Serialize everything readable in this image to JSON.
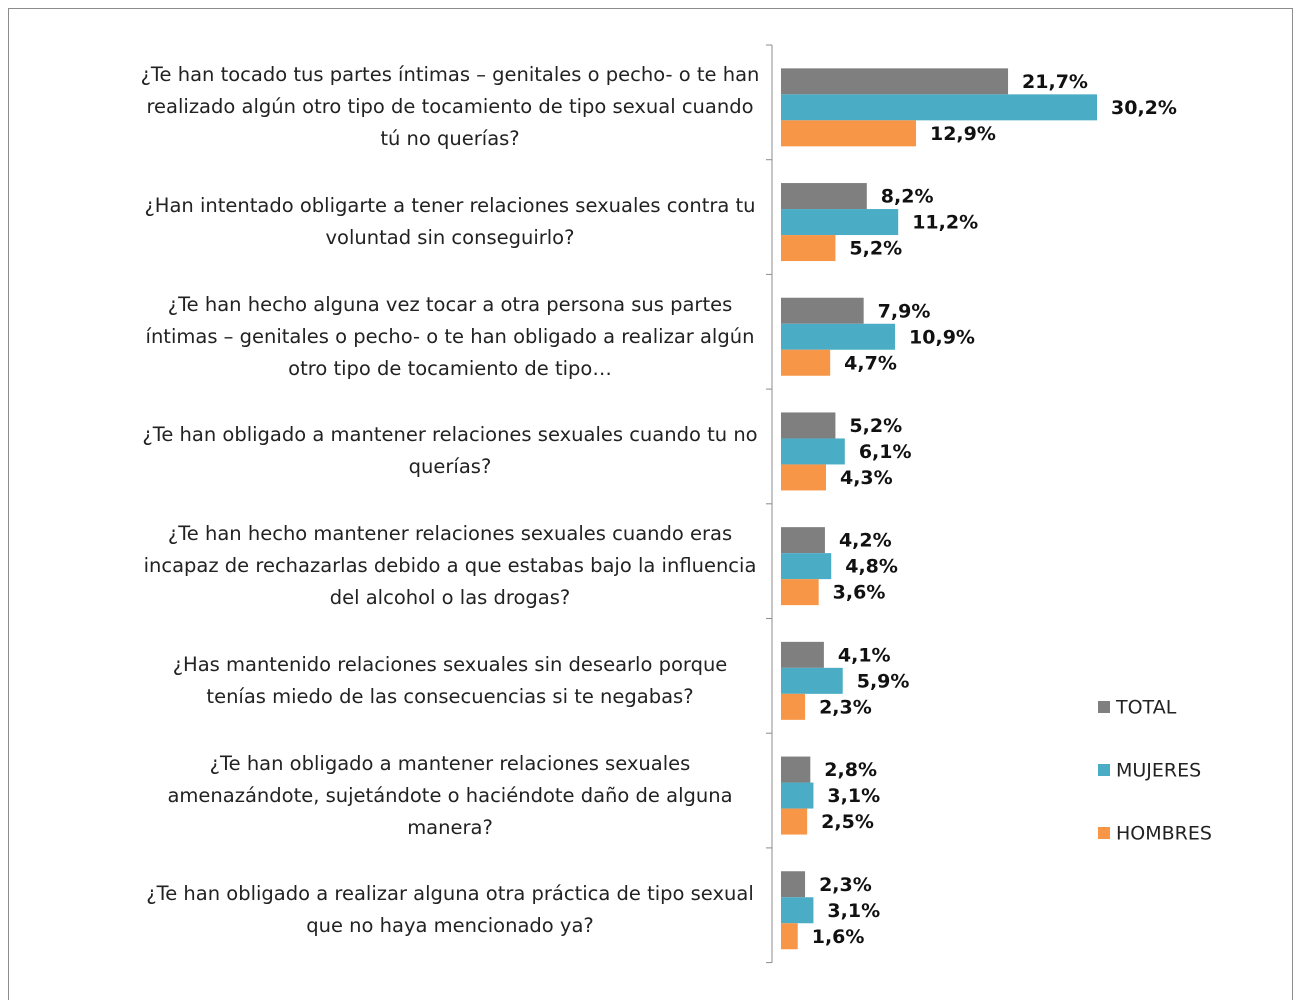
{
  "chart_data": {
    "type": "bar",
    "orientation": "horizontal",
    "categories": [
      "¿Te han tocado tus partes íntimas – genitales o pecho- o te han realizado algún otro tipo de tocamiento de tipo sexual cuando tú no querías?",
      "¿Han intentado obligarte a tener relaciones sexuales contra tu voluntad sin conseguirlo?",
      "¿Te han hecho alguna vez tocar a otra persona sus partes íntimas – genitales o pecho- o te han obligado a realizar algún otro tipo de tocamiento de tipo…",
      "¿Te han obligado a mantener relaciones sexuales cuando tu no querías?",
      "¿Te han hecho mantener relaciones sexuales cuando eras incapaz de rechazarlas debido a que estabas bajo la influencia del alcohol o las drogas?",
      "¿Has mantenido relaciones sexuales sin desearlo porque tenías miedo de las consecuencias si te negabas?",
      "¿Te han obligado a mantener relaciones sexuales amenazándote, sujetándote o haciéndote daño de alguna manera?",
      "¿Te han obligado a realizar alguna otra práctica de tipo sexual que no haya mencionado ya?"
    ],
    "series": [
      {
        "name": "TOTAL",
        "color": "#7f7f7f",
        "values": [
          21.7,
          8.2,
          7.9,
          5.2,
          4.2,
          4.1,
          2.8,
          2.3
        ],
        "value_labels": [
          "21,7%",
          "8,2%",
          "7,9%",
          "5,2%",
          "4,2%",
          "4,1%",
          "2,8%",
          "2,3%"
        ]
      },
      {
        "name": "MUJERES",
        "color": "#4bacc6",
        "values": [
          30.2,
          11.2,
          10.9,
          6.1,
          4.8,
          5.9,
          3.1,
          3.1
        ],
        "value_labels": [
          "30,2%",
          "11,2%",
          "10,9%",
          "6,1%",
          "4,8%",
          "5,9%",
          "3,1%",
          "3,1%"
        ]
      },
      {
        "name": "HOMBRES",
        "color": "#f79646",
        "values": [
          12.9,
          5.2,
          4.7,
          4.3,
          3.6,
          2.3,
          2.5,
          1.6
        ],
        "value_labels": [
          "12,9%",
          "5,2%",
          "4,7%",
          "4,3%",
          "3,6%",
          "2,3%",
          "2,5%",
          "1,6%"
        ]
      }
    ],
    "legend": "right"
  }
}
